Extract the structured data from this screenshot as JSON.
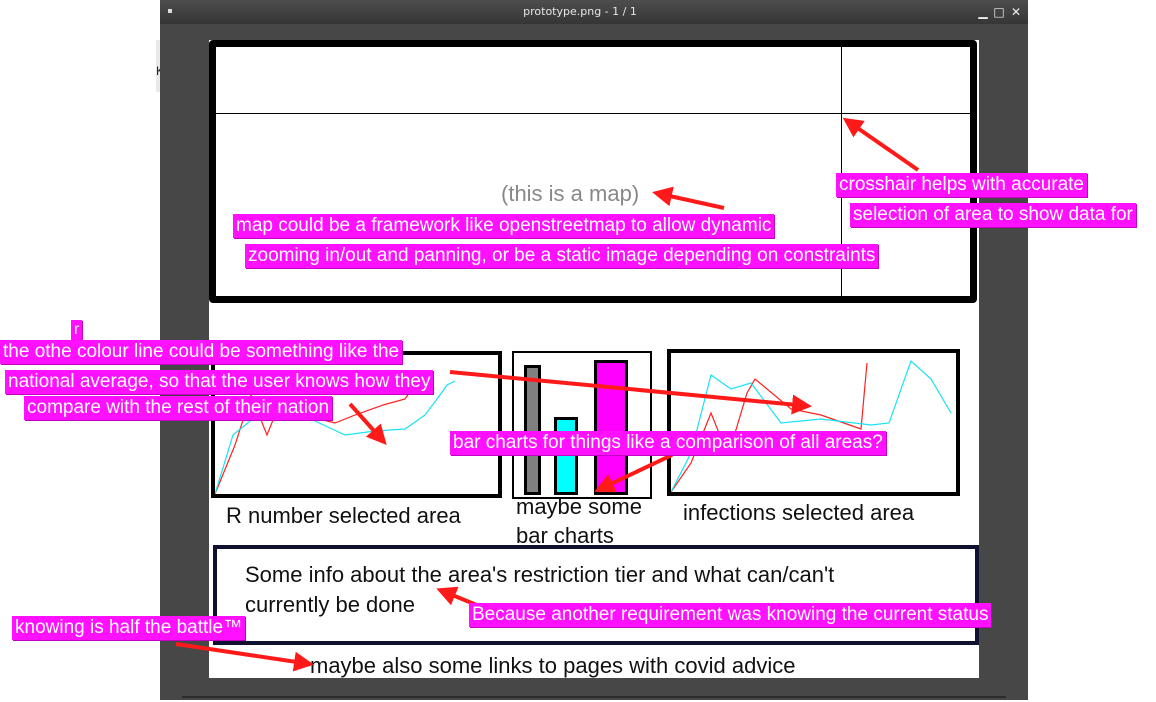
{
  "window": {
    "title": "prototype.png - 1 / 1",
    "controls": {
      "minimize": "▁",
      "maximize": "□",
      "close": "✕"
    }
  },
  "behind": {
    "letter_k": "K"
  },
  "prototype": {
    "map_label": "(this is a map)",
    "chart_left_caption": "R number selected area",
    "chart_middle_caption_1": "maybe some",
    "chart_middle_caption_2": "bar charts",
    "chart_right_caption": "infections selected area",
    "info_line_1": "Some info about the area's restriction tier and what can/can't",
    "info_line_2": "currently be done",
    "links_text": "maybe also some links to pages with covid advice"
  },
  "annotations": {
    "crosshair_1": "crosshair helps with accurate",
    "crosshair_2": "selection of area to show data for",
    "map_1": "map could be a framework like openstreetmap to allow dynamic",
    "map_2": "zooming in/out and panning, or be a static image depending on constraints",
    "r_fix": "r",
    "line_1": "the othe colour line could be something like the",
    "line_2": "national average, so that the user knows how they",
    "line_3": "compare with the rest of their nation",
    "bars": "bar charts for things like a comparison of all areas?",
    "status": "Because another requirement was knowing the current status",
    "battle": "knowing is half the battle™"
  },
  "colors": {
    "highlight": "#ff10ff",
    "arrow": "#ff1a1a",
    "series_red": "#ff2020",
    "series_cyan": "#19e3f2",
    "bar_gray": "#808080",
    "bar_cyan": "#00ffff",
    "bar_magenta": "#ff00ff"
  }
}
